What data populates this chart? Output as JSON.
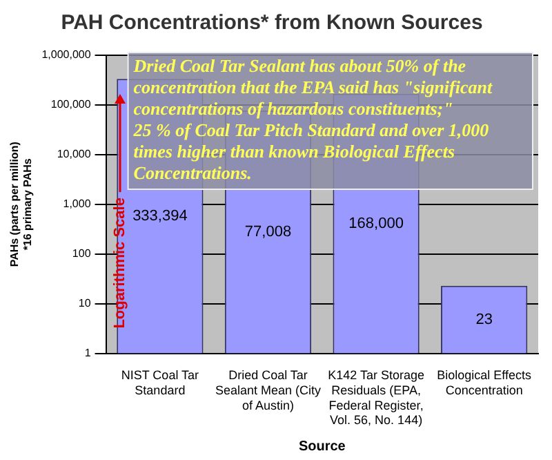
{
  "chart_data": {
    "type": "bar",
    "title": "PAH Concentrations* from Known Sources",
    "xlabel": "Source",
    "ylabel": "PAHs (parts per million)\n*16 primary PAHs",
    "categories": [
      "NIST Coal Tar Standard",
      "Dried Coal Tar Sealant Mean (City of Austin)",
      "K142 Tar Storage Residuals (EPA, Federal Register, Vol. 56, No. 144)",
      "Biological Effects Concentration"
    ],
    "values": [
      333394,
      77008,
      168000,
      23
    ],
    "color": "#9999ff",
    "value_labels": [
      "333,394",
      "77,008",
      "168,000",
      "23"
    ],
    "log": true,
    "ylim": [
      1,
      1000000
    ],
    "yticks": [
      {
        "value": 1,
        "label": "1"
      },
      {
        "value": 10,
        "label": "10"
      },
      {
        "value": 100,
        "label": "100"
      },
      {
        "value": 1000,
        "label": "1,000"
      },
      {
        "value": 10000,
        "label": "10,000"
      },
      {
        "value": 100000,
        "label": "100,000"
      },
      {
        "value": 1000000,
        "label": "1,000,000"
      }
    ],
    "grid": "y",
    "legend": false,
    "annotations": [
      "Dried Coal Tar Sealant has about 50% of the concentration that the EPA said has \"significant concentrations of hazardous constituents;\"\n25 % of Coal Tar Pitch Standard and over 1,000 times higher than known Biological Effects Concentrations.",
      "Logarithmic Scale"
    ]
  }
}
